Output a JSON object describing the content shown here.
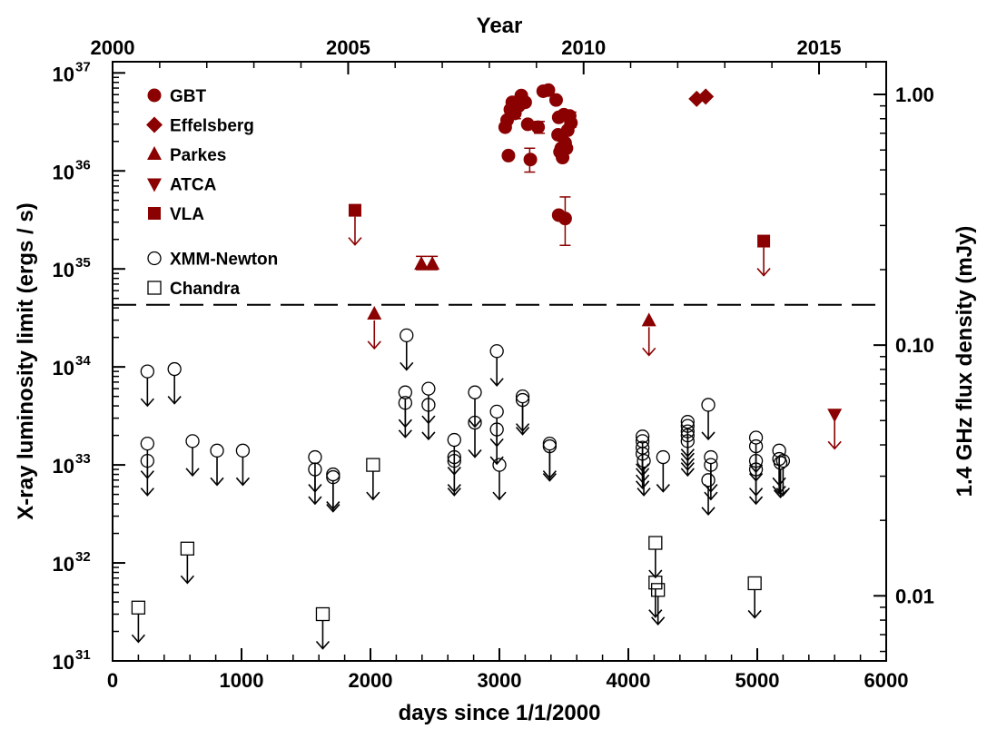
{
  "chart_data": {
    "type": "scatter",
    "xlabel": "days since 1/1/2000",
    "ylabel": "X-ray luminosity limit (ergs / s)",
    "y2label": "1.4 GHz flux density (mJy)",
    "x2label": "Year",
    "xlim": [
      0,
      6000
    ],
    "ylim": [
      1e+31,
      1.3e+37
    ],
    "yscale": "log",
    "y2scale": "log",
    "y2lim": [
      0.0055,
      1.35
    ],
    "grid": false,
    "legend_position": "top-left",
    "x_ticks": [
      0,
      1000,
      2000,
      3000,
      4000,
      5000,
      6000
    ],
    "x_tick_labels": [
      "0",
      "1000",
      "2000",
      "3000",
      "4000",
      "5000",
      "6000"
    ],
    "y_ticks": [
      {
        "value": 1e+31,
        "mantissa": "10",
        "exponent": "31"
      },
      {
        "value": 1e+32,
        "mantissa": "10",
        "exponent": "32"
      },
      {
        "value": 1e+33,
        "mantissa": "10",
        "exponent": "33"
      },
      {
        "value": 1e+34,
        "mantissa": "10",
        "exponent": "34"
      },
      {
        "value": 1e+35,
        "mantissa": "10",
        "exponent": "35"
      },
      {
        "value": 1e+36,
        "mantissa": "10",
        "exponent": "36"
      },
      {
        "value": 1e+37,
        "mantissa": "10",
        "exponent": "37"
      }
    ],
    "year_ticks": [
      {
        "label": "2000",
        "day": 0
      },
      {
        "label": "2005",
        "day": 1827
      },
      {
        "label": "2010",
        "day": 3653
      },
      {
        "label": "2015",
        "day": 5479
      }
    ],
    "y2_ticks": [
      {
        "value": 1.0,
        "label": "1.00"
      },
      {
        "value": 0.1,
        "label": "0.10"
      },
      {
        "value": 0.01,
        "label": "0.01"
      }
    ],
    "reference_line": {
      "y": 4.3e+34,
      "style": "dashed"
    },
    "series": [
      {
        "name": "GBT",
        "marker": "circle-filled",
        "color": "#8b0000",
        "axis": "flux_mJy",
        "upper_limit": false,
        "points": [
          {
            "x": 3045,
            "y": 0.74
          },
          {
            "x": 3060,
            "y": 0.79
          },
          {
            "x": 3070,
            "y": 0.57
          },
          {
            "x": 3085,
            "y": 0.87
          },
          {
            "x": 3100,
            "y": 0.93
          },
          {
            "x": 3120,
            "y": 0.84
          },
          {
            "x": 3150,
            "y": 0.9
          },
          {
            "x": 3170,
            "y": 0.99
          },
          {
            "x": 3200,
            "y": 0.93
          },
          {
            "x": 3220,
            "y": 0.76
          },
          {
            "x": 3240,
            "y": 0.55
          },
          {
            "x": 3300,
            "y": 0.74
          },
          {
            "x": 3340,
            "y": 1.03
          },
          {
            "x": 3380,
            "y": 1.04
          },
          {
            "x": 3440,
            "y": 0.95
          },
          {
            "x": 3455,
            "y": 0.69
          },
          {
            "x": 3460,
            "y": 0.81
          },
          {
            "x": 3470,
            "y": 0.59
          },
          {
            "x": 3480,
            "y": 0.61
          },
          {
            "x": 3490,
            "y": 0.56
          },
          {
            "x": 3500,
            "y": 0.83
          },
          {
            "x": 3510,
            "y": 0.64
          },
          {
            "x": 3520,
            "y": 0.61
          },
          {
            "x": 3530,
            "y": 0.72
          },
          {
            "x": 3545,
            "y": 0.82
          },
          {
            "x": 3555,
            "y": 0.77
          },
          {
            "x": 3460,
            "y": 0.33
          },
          {
            "x": 3510,
            "y": 0.32
          }
        ],
        "errors": [
          {
            "x": 3125,
            "y": 0.87,
            "lo": 0.8,
            "hi": 0.96
          },
          {
            "x": 3235,
            "y": 0.55,
            "lo": 0.49,
            "hi": 0.61
          },
          {
            "x": 3310,
            "y": 0.74,
            "lo": 0.7,
            "hi": 0.78
          },
          {
            "x": 3510,
            "y": 0.32,
            "lo": 0.25,
            "hi": 0.39
          },
          {
            "x": 3555,
            "y": 0.79,
            "lo": 0.74,
            "hi": 0.85
          }
        ]
      },
      {
        "name": "Effelsberg",
        "marker": "diamond-filled",
        "color": "#8b0000",
        "axis": "flux_mJy",
        "upper_limit": false,
        "points": [
          {
            "x": 4530,
            "y": 0.96
          },
          {
            "x": 4600,
            "y": 0.98
          }
        ]
      },
      {
        "name": "Parkes",
        "marker": "triangle-up-filled",
        "color": "#8b0000",
        "axis": "flux_mJy",
        "upper_limit": false,
        "points": [
          {
            "x": 2395,
            "y": 0.21
          },
          {
            "x": 2480,
            "y": 0.21
          },
          {
            "x": 2030,
            "y": 0.133
          },
          {
            "x": 4160,
            "y": 0.125
          }
        ],
        "errors": [
          {
            "x": 2395,
            "y": 0.21,
            "lo": 0.2,
            "hi": 0.226
          },
          {
            "x": 2480,
            "y": 0.21,
            "lo": 0.2,
            "hi": 0.226
          }
        ],
        "arrows_on": [
          2,
          3
        ]
      },
      {
        "name": "ATCA",
        "marker": "triangle-down-filled",
        "color": "#8b0000",
        "axis": "flux_mJy",
        "upper_limit": true,
        "points": [
          {
            "x": 5600,
            "y": 0.053
          }
        ]
      },
      {
        "name": "VLA",
        "marker": "square-filled",
        "color": "#8b0000",
        "axis": "flux_mJy",
        "upper_limit": true,
        "points": [
          {
            "x": 1880,
            "y": 0.345
          },
          {
            "x": 5050,
            "y": 0.26
          }
        ]
      },
      {
        "name": "XMM-Newton",
        "marker": "circle-open",
        "color": "#000000",
        "axis": "xray",
        "upper_limit": true,
        "points": [
          {
            "x": 270,
            "y": 9e+33
          },
          {
            "x": 270,
            "y": 1.65e+33
          },
          {
            "x": 270,
            "y": 1.1e+33
          },
          {
            "x": 480,
            "y": 9.5e+33
          },
          {
            "x": 620,
            "y": 1.75e+33
          },
          {
            "x": 810,
            "y": 1.4e+33
          },
          {
            "x": 1010,
            "y": 1.4e+33
          },
          {
            "x": 1570,
            "y": 1.2e+33
          },
          {
            "x": 1570,
            "y": 9e+32
          },
          {
            "x": 1710,
            "y": 8e+32
          },
          {
            "x": 1710,
            "y": 7.5e+32
          },
          {
            "x": 2280,
            "y": 2.1e+34
          },
          {
            "x": 2270,
            "y": 5.5e+33
          },
          {
            "x": 2270,
            "y": 4.3e+33
          },
          {
            "x": 2450,
            "y": 6e+33
          },
          {
            "x": 2450,
            "y": 4.1e+33
          },
          {
            "x": 2650,
            "y": 1.8e+33
          },
          {
            "x": 2650,
            "y": 1.2e+33
          },
          {
            "x": 2650,
            "y": 1.1e+33
          },
          {
            "x": 2810,
            "y": 5.5e+33
          },
          {
            "x": 2810,
            "y": 2.7e+33
          },
          {
            "x": 2980,
            "y": 1.45e+34
          },
          {
            "x": 2980,
            "y": 3.5e+33
          },
          {
            "x": 2980,
            "y": 2.3e+33
          },
          {
            "x": 3000,
            "y": 1e+33
          },
          {
            "x": 3180,
            "y": 5e+33
          },
          {
            "x": 3180,
            "y": 4.6e+33
          },
          {
            "x": 3390,
            "y": 1.65e+33
          },
          {
            "x": 3390,
            "y": 1.55e+33
          },
          {
            "x": 4110,
            "y": 1.95e+33
          },
          {
            "x": 4110,
            "y": 1.75e+33
          },
          {
            "x": 4110,
            "y": 1.5e+33
          },
          {
            "x": 4110,
            "y": 1.3e+33
          },
          {
            "x": 4120,
            "y": 1.1e+33
          },
          {
            "x": 4270,
            "y": 1.2e+33
          },
          {
            "x": 4460,
            "y": 2.75e+33
          },
          {
            "x": 4460,
            "y": 2.5e+33
          },
          {
            "x": 4460,
            "y": 2.2e+33
          },
          {
            "x": 4460,
            "y": 2e+33
          },
          {
            "x": 4460,
            "y": 1.75e+33
          },
          {
            "x": 4620,
            "y": 4.1e+33
          },
          {
            "x": 4640,
            "y": 1.2e+33
          },
          {
            "x": 4640,
            "y": 1e+33
          },
          {
            "x": 4620,
            "y": 7e+32
          },
          {
            "x": 4990,
            "y": 1.9e+33
          },
          {
            "x": 4990,
            "y": 1.55e+33
          },
          {
            "x": 4990,
            "y": 1.1e+33
          },
          {
            "x": 4990,
            "y": 9e+32
          },
          {
            "x": 5170,
            "y": 1.4e+33
          },
          {
            "x": 5170,
            "y": 1.15e+33
          },
          {
            "x": 5180,
            "y": 1.05e+33
          },
          {
            "x": 5200,
            "y": 1.1e+33
          }
        ]
      },
      {
        "name": "Chandra",
        "marker": "square-open",
        "color": "#000000",
        "axis": "xray",
        "upper_limit": true,
        "points": [
          {
            "x": 200,
            "y": 3.5e+31
          },
          {
            "x": 580,
            "y": 1.4e+32
          },
          {
            "x": 1630,
            "y": 3e+31
          },
          {
            "x": 2020,
            "y": 1e+33
          },
          {
            "x": 4210,
            "y": 1.6e+32
          },
          {
            "x": 4210,
            "y": 6.3e+31
          },
          {
            "x": 4230,
            "y": 5.3e+31
          },
          {
            "x": 4980,
            "y": 6.2e+31
          }
        ]
      }
    ]
  }
}
